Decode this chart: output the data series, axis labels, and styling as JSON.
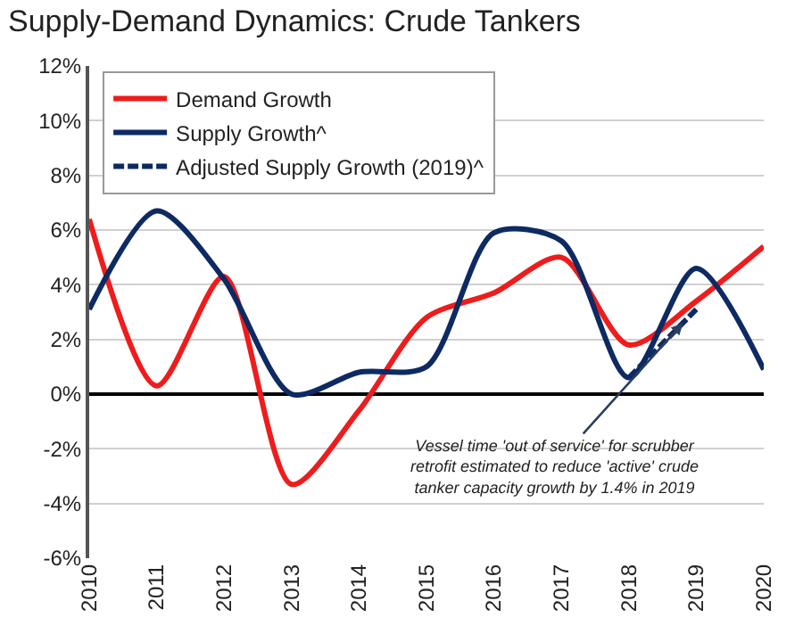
{
  "chart_data": {
    "type": "line",
    "title": "Supply-Demand Dynamics: Crude Tankers",
    "x": [
      2010,
      2011,
      2012,
      2013,
      2014,
      2015,
      2016,
      2017,
      2018,
      2019,
      2020
    ],
    "series": [
      {
        "name": "Demand Growth",
        "color": "#ee1c1c",
        "values": [
          6.4,
          0.3,
          4.3,
          -3.3,
          -0.6,
          2.8,
          3.7,
          5.0,
          1.8,
          3.4,
          5.4
        ]
      },
      {
        "name": "Supply Growth^",
        "color": "#0d2a63",
        "values": [
          3.1,
          6.7,
          4.2,
          0.0,
          0.8,
          1.0,
          5.9,
          5.6,
          0.6,
          4.6,
          0.9
        ]
      },
      {
        "name": "Adjusted Supply Growth (2019)^",
        "color": "#0d2a63",
        "line_style": "dashed",
        "x": [
          2018,
          2019
        ],
        "values": [
          0.6,
          3.1
        ]
      }
    ],
    "xlim": [
      2010,
      2020
    ],
    "xticks": [
      2010,
      2011,
      2012,
      2013,
      2014,
      2015,
      2016,
      2017,
      2018,
      2019,
      2020
    ],
    "ylim": [
      -6,
      12
    ],
    "yticks": [
      {
        "value": -6,
        "label": "-6%"
      },
      {
        "value": -4,
        "label": "-4%"
      },
      {
        "value": -2,
        "label": "-2%"
      },
      {
        "value": 0,
        "label": "0%"
      },
      {
        "value": 2,
        "label": "2%"
      },
      {
        "value": 4,
        "label": "4%"
      },
      {
        "value": 6,
        "label": "6%"
      },
      {
        "value": 8,
        "label": "8%"
      },
      {
        "value": 10,
        "label": "10%"
      },
      {
        "value": 12,
        "label": "12%"
      }
    ],
    "grid": "y",
    "legend": "top left",
    "marker": "none",
    "line_style": "solid",
    "annotations": [
      {
        "text": "Vessel time 'out of service' for scrubber retrofit estimated to reduce 'active' crude tanker capacity growth by 1.4% in 2019",
        "x": 2018.8,
        "y": 2.6
      }
    ]
  }
}
